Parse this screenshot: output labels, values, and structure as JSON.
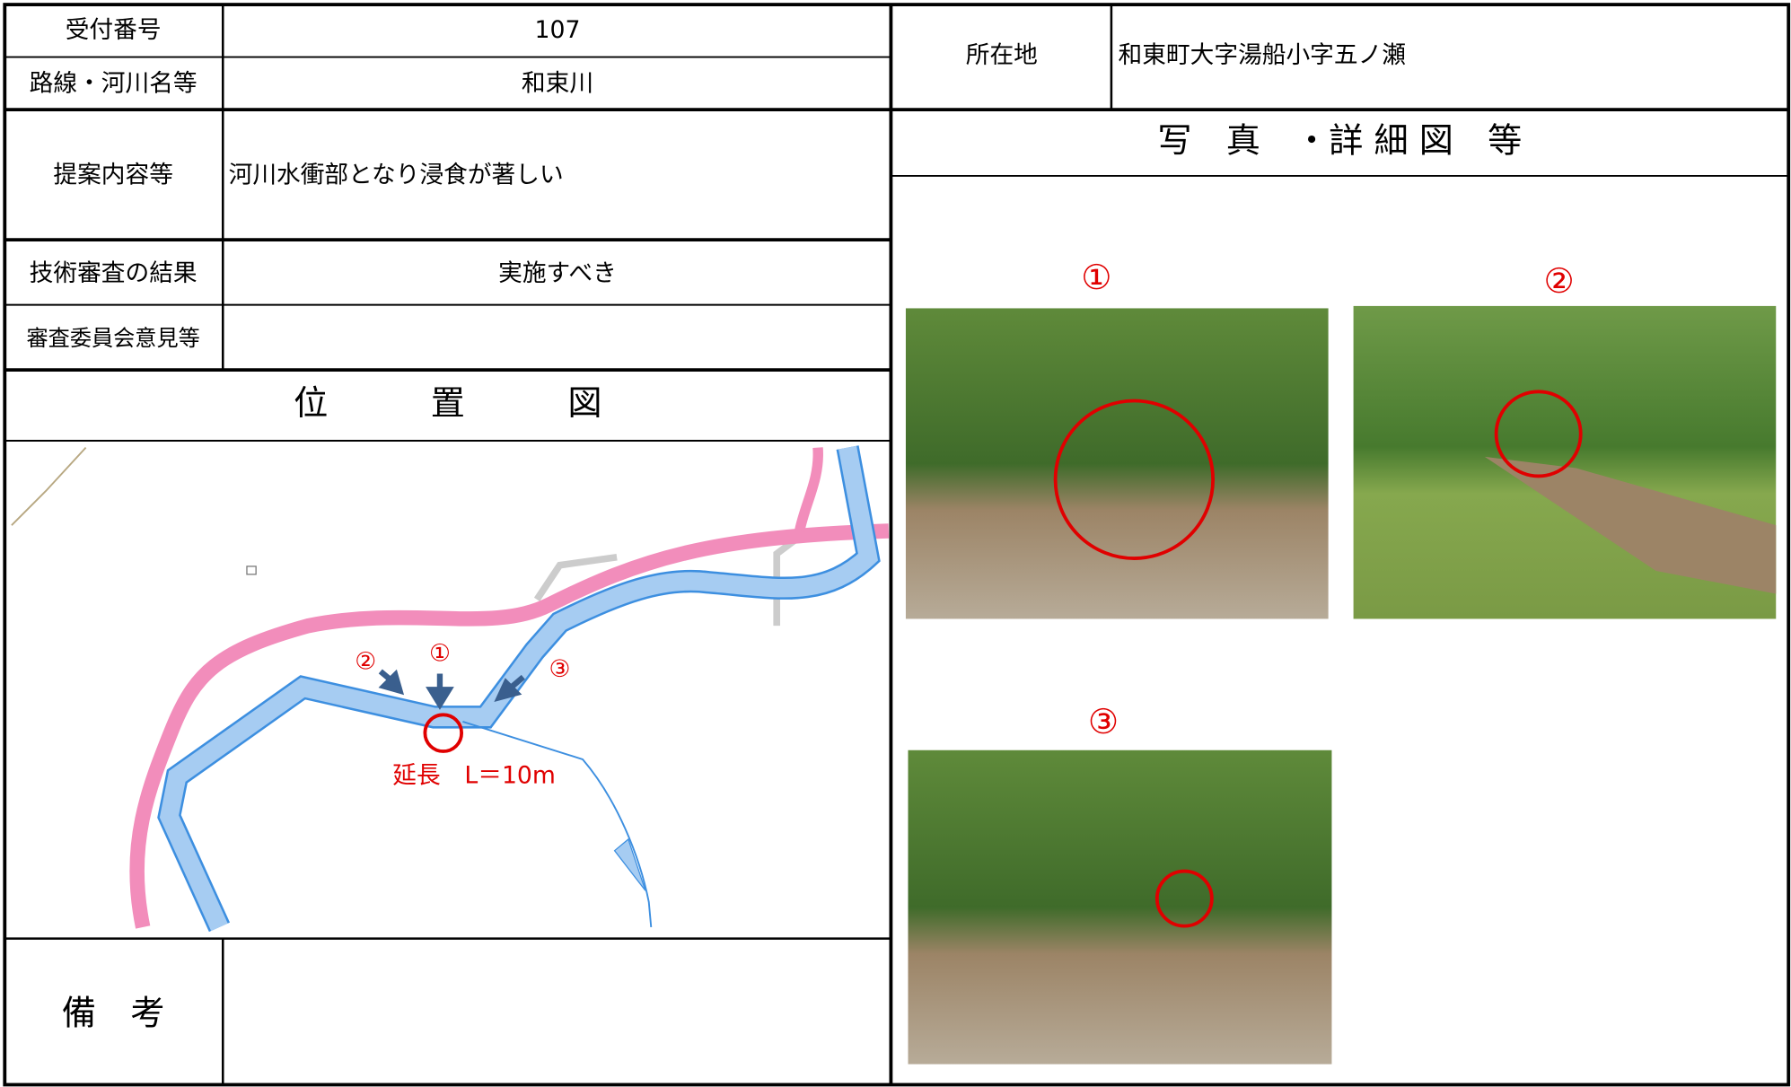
{
  "header": {
    "reception_number_label": "受付番号",
    "reception_number": "107",
    "route_label": "路線・河川名等",
    "route": "和束川",
    "location_label": "所在地",
    "location": "和東町大字湯船小字五ノ瀬"
  },
  "proposal": {
    "label": "提案内容等",
    "text": "河川水衝部となり浸食が著しい"
  },
  "review": {
    "label": "技術審査の結果",
    "result": "実施すべき"
  },
  "committee": {
    "label": "審査委員会意見等"
  },
  "map": {
    "title": "位　　　置　　　図",
    "markers": [
      "②",
      "①",
      "③"
    ],
    "extent": "延長　L＝10m"
  },
  "photos": {
    "title": "写　真　・詳 細 図　等",
    "labels": [
      "①",
      "②",
      "③"
    ]
  },
  "remarks": {
    "label": "備　考"
  }
}
